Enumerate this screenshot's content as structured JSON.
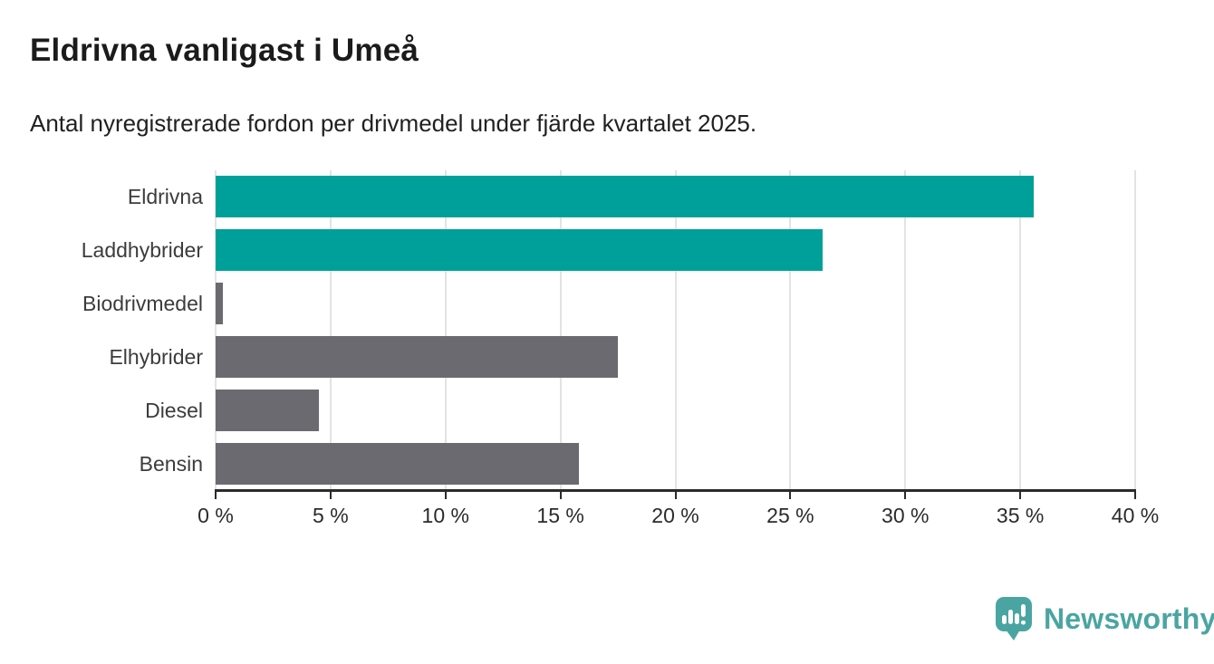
{
  "header": {
    "title": "Eldrivna vanligast i Umeå",
    "subtitle": "Antal nyregistrerade fordon per drivmedel under fjärde kvartalet 2025."
  },
  "chart_data": {
    "type": "bar",
    "orientation": "horizontal",
    "title": "Eldrivna vanligast i Umeå",
    "subtitle": "Antal nyregistrerade fordon per drivmedel under fjärde kvartalet 2025.",
    "categories": [
      "Eldrivna",
      "Laddhybrider",
      "Biodrivmedel",
      "Elhybrider",
      "Diesel",
      "Bensin"
    ],
    "values": [
      35.6,
      26.4,
      0.3,
      17.5,
      4.5,
      15.8
    ],
    "unit": "%",
    "bar_colors": [
      "#00a09a",
      "#00a09a",
      "#6b6a70",
      "#6b6a70",
      "#6b6a70",
      "#6b6a70"
    ],
    "xlabel": "",
    "ylabel": "",
    "xlim": [
      0,
      40
    ],
    "x_ticks": [
      0,
      5,
      10,
      15,
      20,
      25,
      30,
      35,
      40
    ],
    "x_tick_labels": [
      "0 %",
      "5 %",
      "10 %",
      "15 %",
      "20 %",
      "25 %",
      "30 %",
      "35 %",
      "40 %"
    ],
    "grid": "vertical",
    "legend": "none"
  },
  "colors": {
    "bar_teal": "#00a09a",
    "bar_gray": "#6b6a70",
    "gridline": "#e3e3e3",
    "axis": "#2b2b2b",
    "title_text": "#1b1b1b",
    "label_text": "#3c3c3c"
  },
  "footer": {
    "logo_text": "Newsworthy",
    "logo_color": "#4aa5a2"
  }
}
